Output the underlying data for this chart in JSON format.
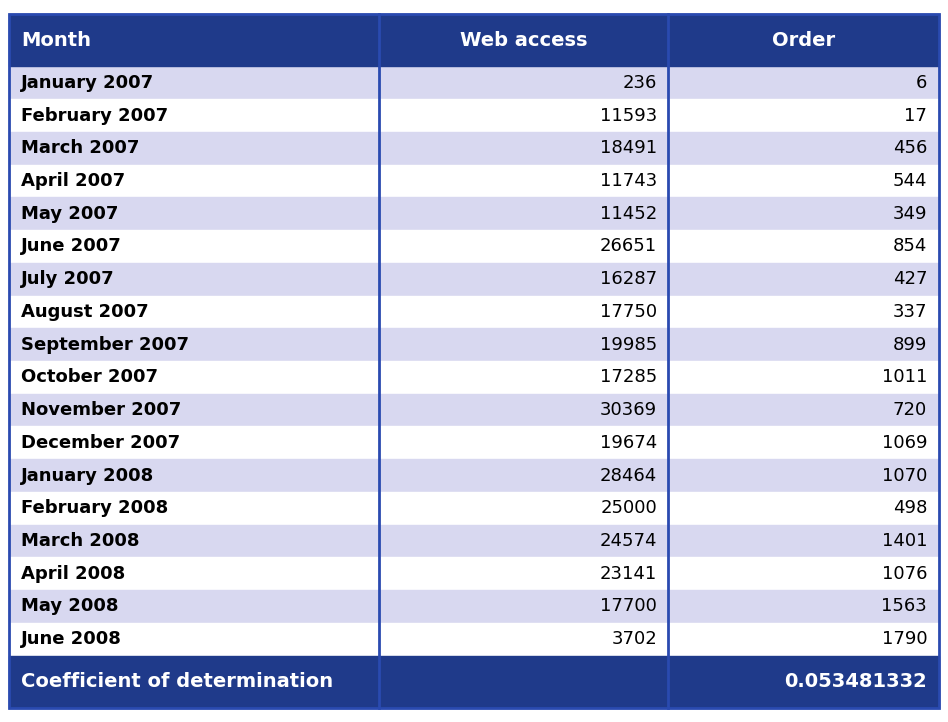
{
  "months": [
    "January 2007",
    "February 2007",
    "March 2007",
    "April 2007",
    "May 2007",
    "June 2007",
    "July 2007",
    "August 2007",
    "September 2007",
    "October 2007",
    "November 2007",
    "December 2007",
    "January 2008",
    "February 2008",
    "March 2008",
    "April 2008",
    "May 2008",
    "June 2008"
  ],
  "web_access": [
    236,
    11593,
    18491,
    11743,
    11452,
    26651,
    16287,
    17750,
    19985,
    17285,
    30369,
    19674,
    28464,
    25000,
    24574,
    23141,
    17700,
    3702
  ],
  "orders": [
    6,
    17,
    456,
    544,
    349,
    854,
    427,
    337,
    899,
    1011,
    720,
    1069,
    1070,
    498,
    1401,
    1076,
    1563,
    1790
  ],
  "header_bg": "#1F3A8A",
  "header_text": "#FFFFFF",
  "row_bg_odd": "#FFFFFF",
  "row_bg_even": "#D8D8F0",
  "footer_bg": "#1F3A8A",
  "footer_text": "#FFFFFF",
  "col_divider": "#2A4AB0",
  "col_header_1": "Month",
  "col_header_2": "Web access",
  "col_header_3": "Order",
  "footer_label": "Coefficient of determination",
  "coeff_value": "0.053481332",
  "font_size": 13,
  "header_font_size": 14
}
